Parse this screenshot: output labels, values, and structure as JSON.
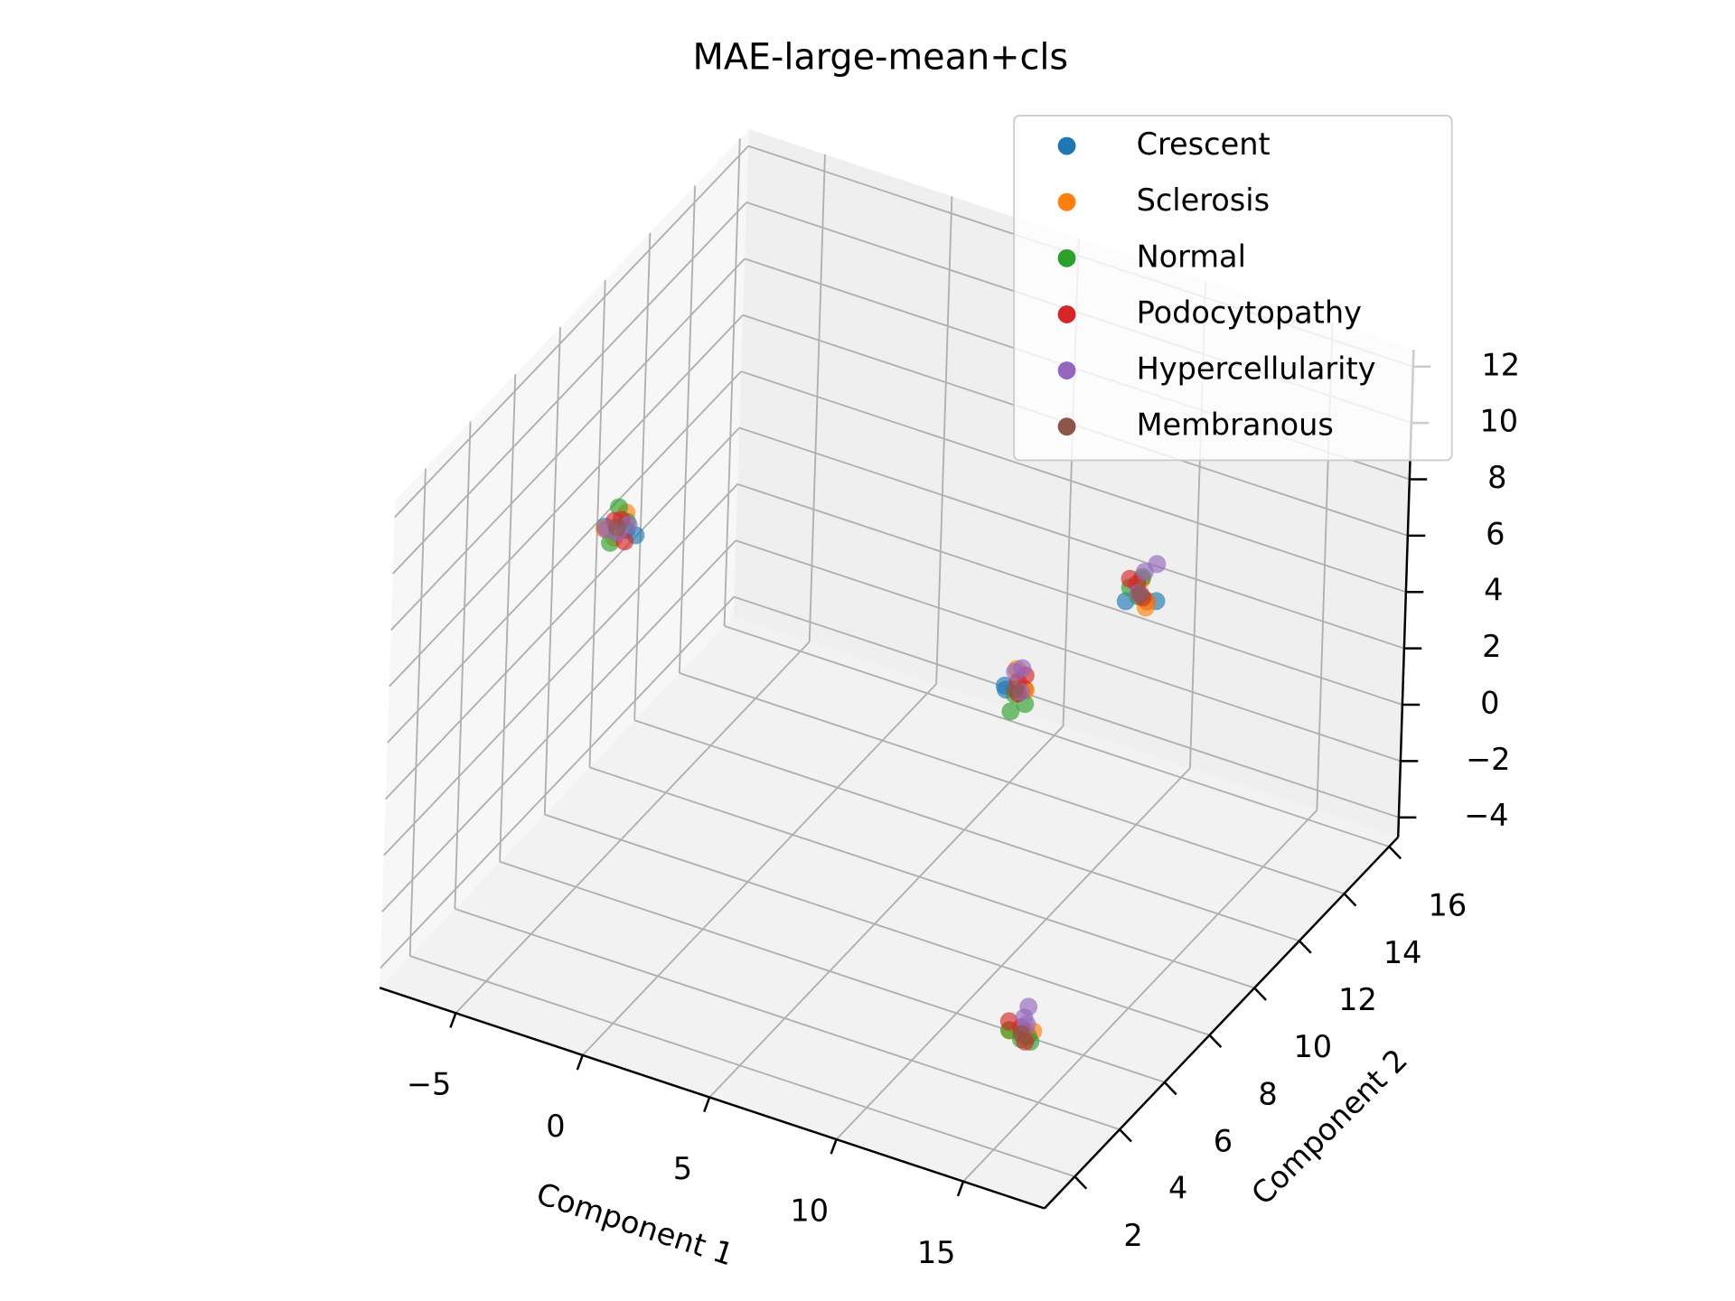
{
  "chart_data": {
    "type": "scatter3d",
    "title": "MAE-large-mean+cls",
    "xlabel": "Component 1",
    "ylabel": "Component 2",
    "xlim": [
      -8,
      18.2
    ],
    "ylim": [
      0.65,
      16.4
    ],
    "zlim": [
      -4.7,
      12.6
    ],
    "xticks": [
      {
        "value": -5,
        "label": "−5"
      },
      0,
      5,
      10,
      15
    ],
    "yticks": [
      2,
      4,
      6,
      8,
      10,
      12,
      14,
      16
    ],
    "zticks": [
      {
        "value": -4,
        "label": "−4"
      },
      {
        "value": -2,
        "label": "−2"
      },
      0,
      2,
      4,
      6,
      8,
      10,
      12
    ],
    "grid": true,
    "legend": "upper right",
    "series": [
      {
        "name": "Crescent",
        "color": "#1f77b4",
        "x": [
          -2.8,
          -3.3,
          -2.6,
          8.0,
          8.3,
          8.6,
          14.2,
          13.8,
          14.4,
          15.2,
          15.4,
          14.9
        ],
        "y": [
          5.2,
          4.8,
          5.4,
          10.1,
          9.8,
          10.3,
          9.2,
          8.7,
          9.4,
          3.2,
          2.9,
          3.4
        ],
        "z": [
          9.3,
          9.6,
          9.0,
          2.9,
          3.1,
          2.8,
          8.5,
          8.8,
          8.4,
          -1.6,
          -1.3,
          -1.7
        ]
      },
      {
        "name": "Sclerosis",
        "color": "#ff7f0e",
        "x": [
          -3.4,
          -2.9,
          -3.1,
          8.2,
          9.0,
          8.7,
          14.5,
          13.9,
          14.3,
          14.8,
          15.3,
          15.1
        ],
        "y": [
          4.9,
          5.3,
          5.0,
          10.4,
          9.9,
          10.2,
          8.8,
          9.3,
          9.1,
          2.8,
          3.3,
          3.0
        ],
        "z": [
          9.4,
          9.8,
          9.1,
          3.3,
          3.2,
          2.9,
          8.7,
          9.1,
          8.6,
          -1.2,
          -1.5,
          -1.4
        ]
      },
      {
        "name": "Normal",
        "color": "#2ca02c",
        "x": [
          -3.2,
          -2.7,
          -3.0,
          8.6,
          8.9,
          8.4,
          13.7,
          14.1,
          14.0,
          15.0,
          14.7,
          15.2
        ],
        "y": [
          5.3,
          5.1,
          4.7,
          9.7,
          10.0,
          10.1,
          9.0,
          8.9,
          9.2,
          3.1,
          2.9,
          3.3
        ],
        "z": [
          9.9,
          9.7,
          9.2,
          2.5,
          2.6,
          2.7,
          9.0,
          8.9,
          9.3,
          -1.7,
          -1.3,
          -1.9
        ]
      },
      {
        "name": "Podocytopathy",
        "color": "#d62728",
        "x": [
          -3.1,
          -2.6,
          -3.0,
          8.7,
          8.8,
          8.6,
          13.6,
          13.8,
          14.2,
          14.6,
          14.9,
          15.5
        ],
        "y": [
          5.0,
          4.9,
          5.2,
          9.9,
          10.1,
          10.0,
          9.1,
          9.2,
          9.0,
          3.0,
          3.2,
          2.7
        ],
        "z": [
          9.7,
          9.2,
          9.6,
          3.0,
          3.5,
          3.3,
          9.2,
          9.0,
          8.8,
          -1.1,
          -1.4,
          -1.3
        ]
      },
      {
        "name": "Hypercellularity",
        "color": "#9467bd",
        "x": [
          -3.5,
          -3.0,
          -2.8,
          8.3,
          8.5,
          8.9,
          14.0,
          14.3,
          14.1,
          15.1,
          15.3,
          15.0
        ],
        "y": [
          5.1,
          5.0,
          5.3,
          10.2,
          10.3,
          9.8,
          9.3,
          9.5,
          8.9,
          3.1,
          3.0,
          3.4
        ],
        "z": [
          9.2,
          9.3,
          9.4,
          3.4,
          3.5,
          3.2,
          9.4,
          9.6,
          9.0,
          -0.9,
          -1.0,
          -0.8
        ]
      },
      {
        "name": "Membranous",
        "color": "#8c564b",
        "x": [
          -3.0,
          8.5,
          14.1,
          15.1
        ],
        "y": [
          5.0,
          10.0,
          9.0,
          3.0
        ],
        "z": [
          9.5,
          3.0,
          8.9,
          -1.4
        ]
      }
    ]
  }
}
